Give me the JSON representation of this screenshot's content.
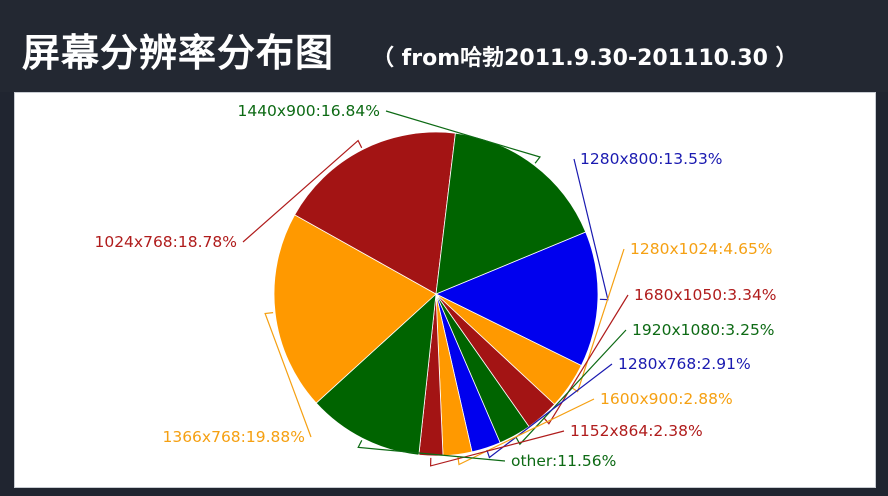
{
  "header": {
    "title": "屏幕分辨率分布图",
    "subtitle": "（ from哈勃2011.9.30-201110.30 ）"
  },
  "chart_data": {
    "type": "pie",
    "slices": [
      {
        "label": "1280x800:13.53%",
        "value": 13.53,
        "color": "#0000ee"
      },
      {
        "label": "1280x1024:4.65%",
        "value": 4.65,
        "color": "#ff9900"
      },
      {
        "label": "1680x1050:3.34%",
        "value": 3.34,
        "color": "#a31414"
      },
      {
        "label": "1920x1080:3.25%",
        "value": 3.25,
        "color": "#006400"
      },
      {
        "label": "1280x768:2.91%",
        "value": 2.91,
        "color": "#0000ee"
      },
      {
        "label": "1600x900:2.88%",
        "value": 2.88,
        "color": "#ff9900"
      },
      {
        "label": "1152x864:2.38%",
        "value": 2.38,
        "color": "#a31414"
      },
      {
        "label": "other:11.56%",
        "value": 11.56,
        "color": "#006400"
      },
      {
        "label": "1366x768:19.88%",
        "value": 19.88,
        "color": "#ff9900"
      },
      {
        "label": "1024x768:18.78%",
        "value": 18.78,
        "color": "#a31414"
      },
      {
        "label": "1440x900:16.84%",
        "value": 16.84,
        "color": "#006400"
      }
    ],
    "label_colors": {
      "#0000ee": "#1a1ab0",
      "#ff9900": "#f5a012",
      "#a31414": "#b01c1c",
      "#006400": "#0d6a14"
    }
  }
}
